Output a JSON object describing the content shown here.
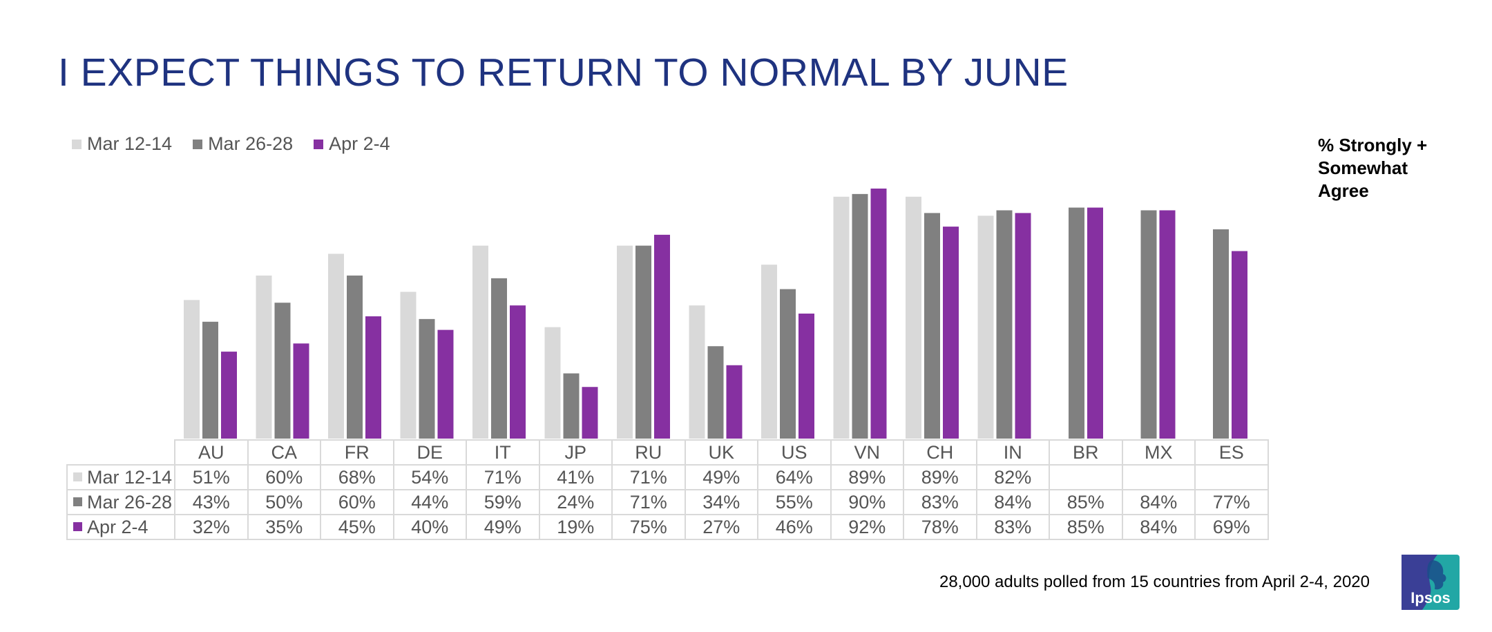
{
  "title": "I EXPECT THINGS TO RETURN TO NORMAL BY JUNE",
  "note": "% Strongly + Somewhat Agree",
  "footnote": "28,000 adults polled from 15 countries from April 2-4, 2020",
  "logo_text": "Ipsos",
  "colors": {
    "title": "#1f3380",
    "series": [
      "#d9d9d9",
      "#808080",
      "#8630a1"
    ],
    "logo_bg": "#22a7a5",
    "logo_dark": "#3a3f96"
  },
  "chart_data": {
    "type": "bar",
    "categories": [
      "AU",
      "CA",
      "FR",
      "DE",
      "IT",
      "JP",
      "RU",
      "UK",
      "US",
      "VN",
      "CH",
      "IN",
      "BR",
      "MX",
      "ES"
    ],
    "series": [
      {
        "name": "Mar 12-14",
        "values": [
          51,
          60,
          68,
          54,
          71,
          41,
          71,
          49,
          64,
          89,
          89,
          82,
          null,
          null,
          null
        ],
        "labels": [
          "51%",
          "60%",
          "68%",
          "54%",
          "71%",
          "41%",
          "71%",
          "49%",
          "64%",
          "89%",
          "89%",
          "82%",
          "",
          "",
          ""
        ]
      },
      {
        "name": "Mar 26-28",
        "values": [
          43,
          50,
          60,
          44,
          59,
          24,
          71,
          34,
          55,
          90,
          83,
          84,
          85,
          84,
          77
        ],
        "labels": [
          "43%",
          "50%",
          "60%",
          "44%",
          "59%",
          "24%",
          "71%",
          "34%",
          "55%",
          "90%",
          "83%",
          "84%",
          "85%",
          "84%",
          "77%"
        ]
      },
      {
        "name": "Apr 2-4",
        "values": [
          32,
          35,
          45,
          40,
          49,
          19,
          75,
          27,
          46,
          92,
          78,
          83,
          85,
          84,
          69
        ],
        "labels": [
          "32%",
          "35%",
          "45%",
          "40%",
          "49%",
          "19%",
          "75%",
          "27%",
          "46%",
          "92%",
          "78%",
          "83%",
          "85%",
          "84%",
          "69%"
        ]
      }
    ],
    "ylim": [
      0,
      100
    ],
    "grid": false,
    "legend": "top-left",
    "data_table": true
  }
}
